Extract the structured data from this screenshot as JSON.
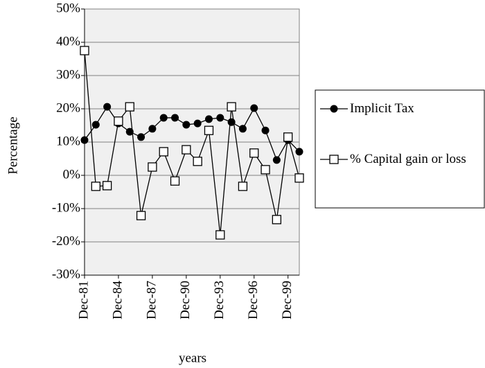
{
  "chart_data": {
    "type": "line",
    "categories": [
      "Dec-81",
      null,
      null,
      "Dec-84",
      null,
      null,
      "Dec-87",
      null,
      null,
      "Dec-90",
      null,
      null,
      "Dec-93",
      null,
      null,
      "Dec-96",
      null,
      null,
      "Dec-99",
      null
    ],
    "series": [
      {
        "name": "Implicit Tax",
        "color": "#000000",
        "marker": "circle",
        "values": [
          10.6,
          15.2,
          20.6,
          15.6,
          13.1,
          11.5,
          14.0,
          17.3,
          17.3,
          15.2,
          15.6,
          16.9,
          17.3,
          16.0,
          14.0,
          20.2,
          13.5,
          4.6,
          10.6,
          7.1
        ]
      },
      {
        "name": "% Capital gain or loss",
        "color": "#000000",
        "marker": "square",
        "values": [
          37.5,
          -3.3,
          -3.1,
          16.3,
          20.6,
          -12.1,
          2.5,
          7.1,
          -1.7,
          7.7,
          4.2,
          13.5,
          -17.9,
          20.6,
          -3.3,
          6.7,
          1.7,
          -13.3,
          11.5,
          -0.8
        ]
      }
    ],
    "xlabel": "years",
    "ylabel": "Percentage",
    "ylim": [
      -30,
      50
    ],
    "yticks": [
      {
        "value": -30,
        "label": "-30%"
      },
      {
        "value": -20,
        "label": "-20%"
      },
      {
        "value": -10,
        "label": "-10%"
      },
      {
        "value": 0,
        "label": "0%"
      },
      {
        "value": 10,
        "label": "10%"
      },
      {
        "value": 20,
        "label": "20%"
      },
      {
        "value": 30,
        "label": "30%"
      },
      {
        "value": 40,
        "label": "40%"
      },
      {
        "value": 50,
        "label": "50%"
      }
    ],
    "grid": true,
    "legend": "right"
  }
}
